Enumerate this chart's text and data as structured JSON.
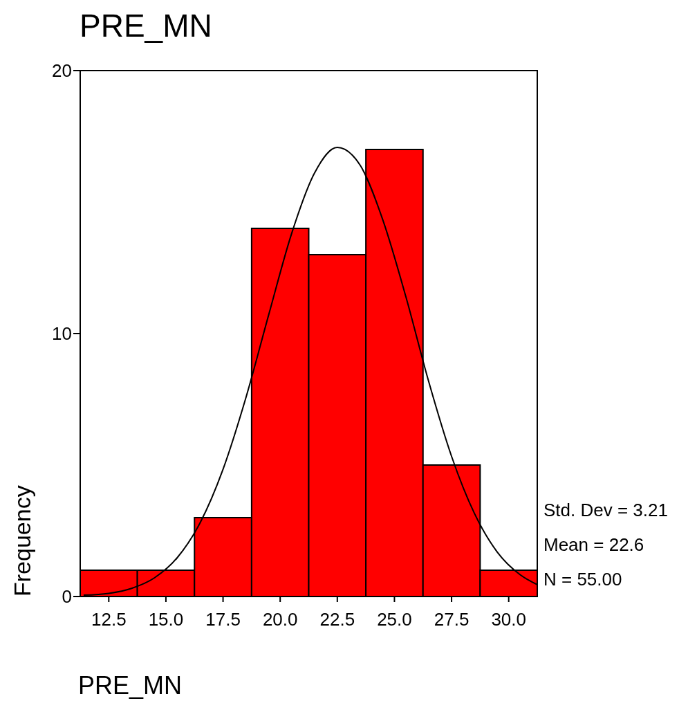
{
  "chart_data": {
    "type": "histogram",
    "title": "PRE_MN",
    "xlabel": "PRE_MN",
    "ylabel": "Frequency",
    "bins": [
      11.25,
      13.75,
      16.25,
      18.75,
      21.25,
      23.75,
      26.25,
      28.75,
      31.25
    ],
    "values": [
      1,
      1,
      3,
      14,
      13,
      17,
      5,
      1
    ],
    "color": "#ff0000",
    "series": [
      {
        "type": "line",
        "color": "#000000",
        "x": [
          11.4,
          12.5,
          13.5,
          14.5,
          15.5,
          16.5,
          17.5,
          18.5,
          19.5,
          20.5,
          21.5,
          22.5,
          23.5,
          24.5,
          25.5,
          26.5,
          27.5,
          28.5,
          29.5,
          30.5,
          31.25
        ],
        "values": [
          0.05,
          0.12,
          0.31,
          0.71,
          1.48,
          2.81,
          4.84,
          7.56,
          10.72,
          13.8,
          16.1,
          17.08,
          16.4,
          14.3,
          11.4,
          8.17,
          5.33,
          3.16,
          1.69,
          0.83,
          0.45
        ]
      }
    ],
    "xlim": [
      11.25,
      31.25
    ],
    "xticks": [
      {
        "value": 12.5,
        "label": "12.5"
      },
      {
        "value": 15,
        "label": "15.0"
      },
      {
        "value": 17.5,
        "label": "17.5"
      },
      {
        "value": 20,
        "label": "20.0"
      },
      {
        "value": 22.5,
        "label": "22.5"
      },
      {
        "value": 25,
        "label": "25.0"
      },
      {
        "value": 27.5,
        "label": "27.5"
      },
      {
        "value": 30,
        "label": "30.0"
      }
    ],
    "ylim": [
      0,
      20
    ],
    "yticks": [
      0,
      10,
      20
    ],
    "grid": false,
    "annotations": [
      "Std. Dev = 3.21",
      "Mean = 22.6",
      "N = 55.00"
    ]
  }
}
